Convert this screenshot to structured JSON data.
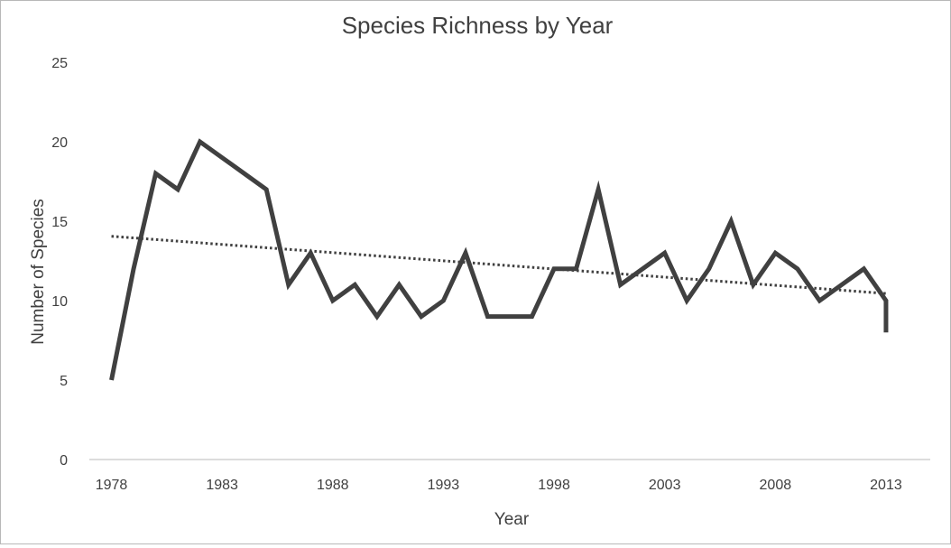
{
  "chart_data": {
    "type": "line",
    "title": "Species Richness by Year",
    "xlabel": "Year",
    "ylabel": "Number of Species",
    "xlim": [
      1977,
      2015
    ],
    "ylim": [
      0,
      25
    ],
    "x_ticks": [
      1978,
      1983,
      1988,
      1993,
      1998,
      2003,
      2008,
      2013
    ],
    "y_ticks": [
      0,
      5,
      10,
      15,
      20,
      25
    ],
    "grid": false,
    "legend": "none",
    "series": [
      {
        "style": "solid",
        "color": "#404040",
        "points": [
          [
            1978,
            5
          ],
          [
            1979,
            12
          ],
          [
            1980,
            18
          ],
          [
            1981,
            17
          ],
          [
            1982,
            20
          ],
          [
            1983,
            19
          ],
          [
            1984,
            18
          ],
          [
            1985,
            17
          ],
          [
            1986,
            11
          ],
          [
            1987,
            13
          ],
          [
            1988,
            10
          ],
          [
            1989,
            11
          ],
          [
            1990,
            9
          ],
          [
            1991,
            11
          ],
          [
            1992,
            9
          ],
          [
            1993,
            10
          ],
          [
            1994,
            13
          ],
          [
            1995,
            9
          ],
          [
            1996,
            9
          ],
          [
            1997,
            9
          ],
          [
            1998,
            12
          ],
          [
            1999,
            12
          ],
          [
            2000,
            17
          ],
          [
            2001,
            11
          ],
          [
            2002,
            12
          ],
          [
            2003,
            13
          ],
          [
            2004,
            10
          ],
          [
            2005,
            12
          ],
          [
            2006,
            15
          ],
          [
            2007,
            11
          ],
          [
            2008,
            13
          ],
          [
            2009,
            12
          ],
          [
            2010,
            10
          ],
          [
            2011,
            11
          ],
          [
            2012,
            12
          ],
          [
            2013,
            10
          ],
          [
            2013,
            8
          ]
        ]
      },
      {
        "style": "dotted-trendline",
        "color": "#404040",
        "points": [
          [
            1978,
            14.05
          ],
          [
            2013,
            10.45
          ]
        ]
      }
    ]
  }
}
